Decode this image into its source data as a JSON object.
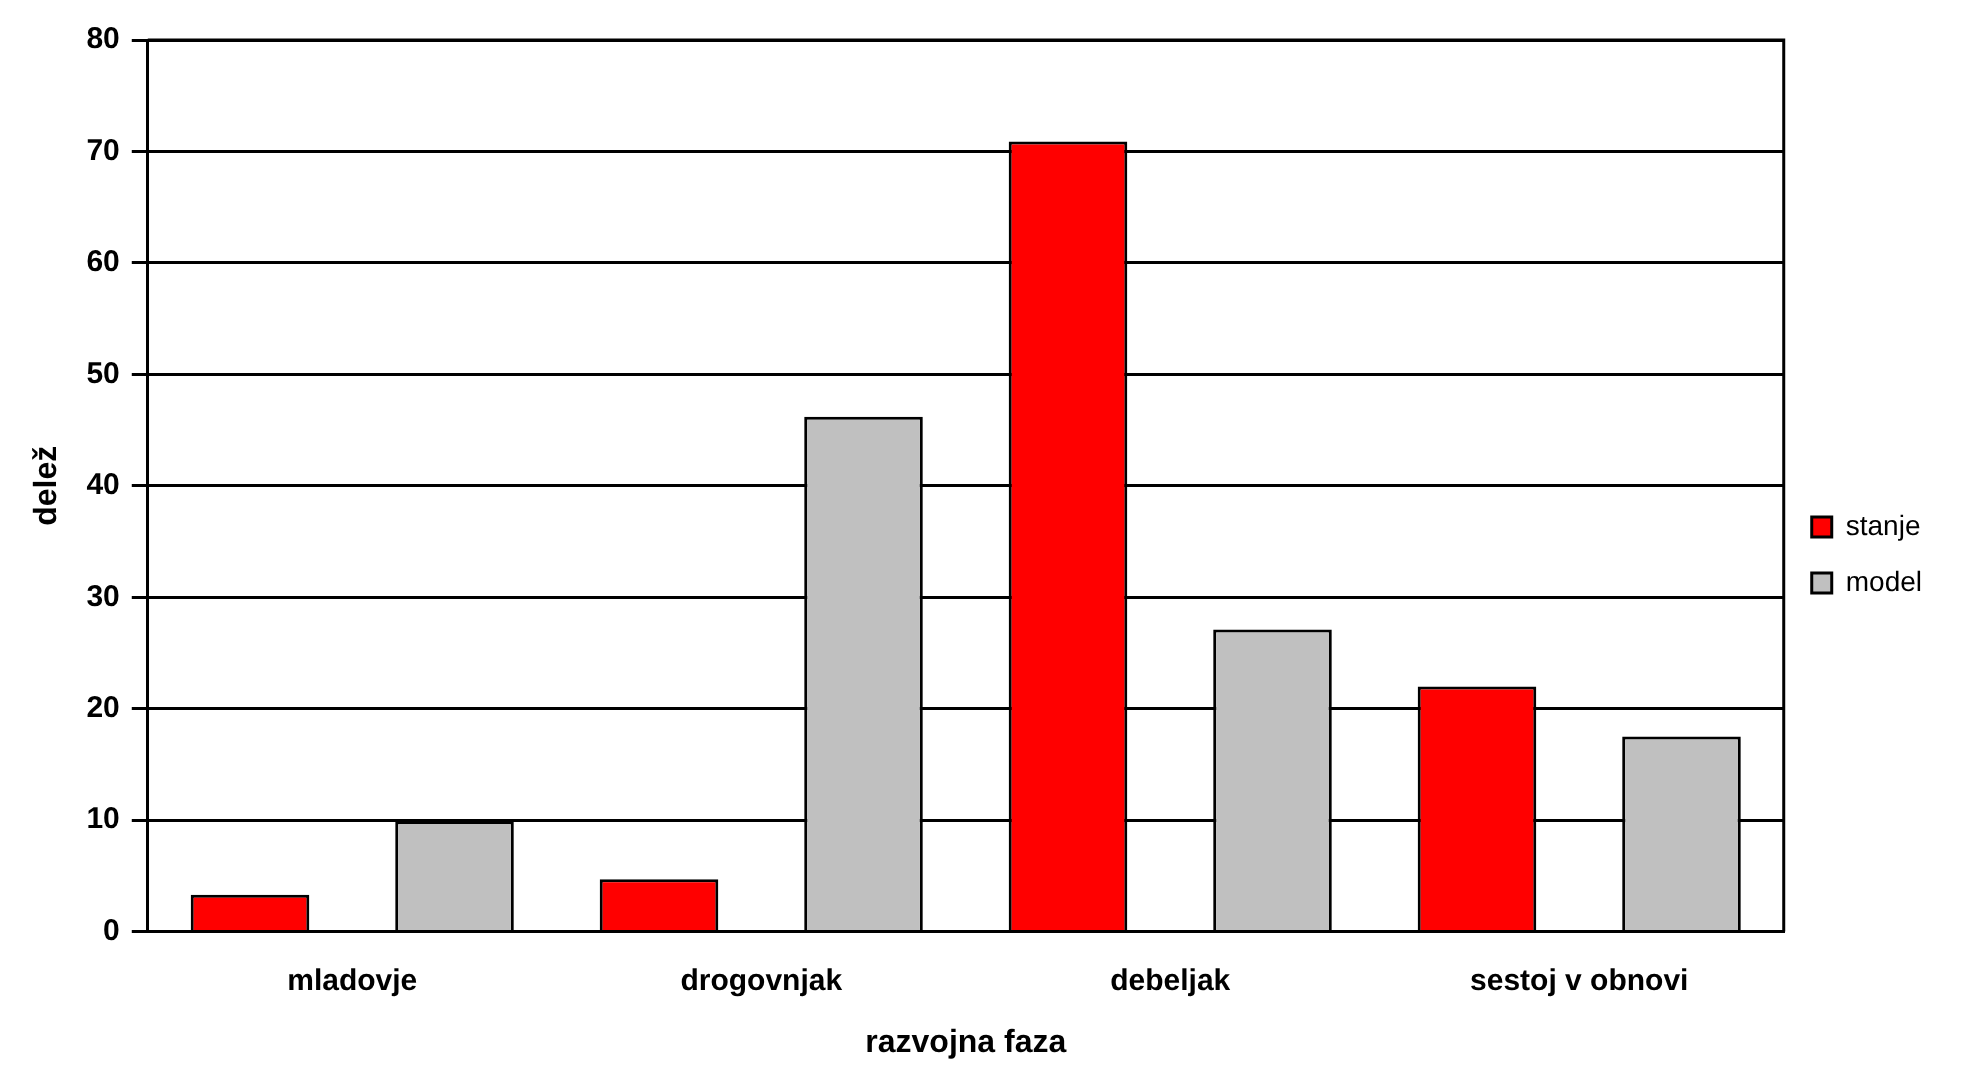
{
  "chart_data": {
    "type": "bar",
    "xlabel": "razvojna faza",
    "ylabel": "delež",
    "categories": [
      "mladovje",
      "drogovnjak",
      "debeljak",
      "sestoj v obnovi"
    ],
    "series": [
      {
        "name": "stanje",
        "color": "#ff0000",
        "values": [
          3.3,
          4.7,
          70.9,
          22.0
        ]
      },
      {
        "name": "model",
        "color": "#c0c0c0",
        "values": [
          9.9,
          46.2,
          27.1,
          17.5
        ]
      }
    ],
    "ylim": [
      0,
      80
    ],
    "yticks": [
      0,
      10,
      20,
      30,
      40,
      50,
      60,
      70,
      80
    ],
    "grid": "y",
    "legend": "right"
  }
}
